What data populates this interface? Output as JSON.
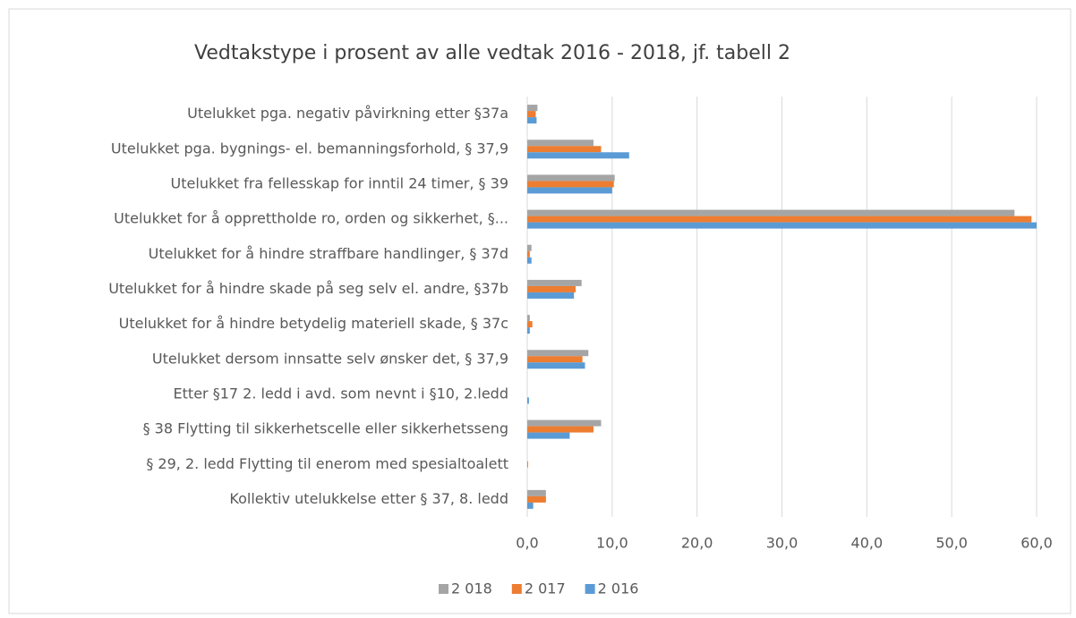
{
  "chart_data": {
    "type": "hbar",
    "title": "Vedtakstype i prosent av alle vedtak 2016 - 2018, jf. tabell 2",
    "categories": [
      "Utelukket pga. negativ påvirkning etter §37a",
      "Utelukket pga. bygnings- el. bemanningsforhold, § 37,9",
      "Utelukket fra fellesskap for inntil 24 timer, § 39",
      "Utelukket for å opprettholde ro, orden og sikkerhet, §...",
      "Utelukket for å hindre straffbare handlinger, § 37d",
      "Utelukket for å hindre skade på seg selv el. andre, §37b",
      "Utelukket for å hindre betydelig materiell skade, § 37c",
      "Utelukket dersom innsatte selv ønsker det, § 37,9",
      "Etter §17 2. ledd i avd. som nevnt i §10, 2.ledd",
      "§ 38 Flytting til sikkerhetscelle eller sikkerhetsseng",
      "§ 29, 2. ledd Flytting til enerom med spesialtoalett",
      "Kollektiv utelukkelse etter § 37, 8. ledd"
    ],
    "series": [
      {
        "name": "2 018",
        "color": "#a5a5a5",
        "values": [
          1.2,
          7.8,
          10.3,
          57.4,
          0.5,
          6.4,
          0.3,
          7.2,
          0,
          8.7,
          0,
          2.2
        ]
      },
      {
        "name": "2 017",
        "color": "#ed7d31",
        "values": [
          1.0,
          8.7,
          10.2,
          59.4,
          0.3,
          5.7,
          0.6,
          6.5,
          0,
          7.8,
          0.1,
          2.2
        ]
      },
      {
        "name": "2 016",
        "color": "#5b9bd5",
        "values": [
          1.1,
          12.0,
          10.0,
          60.0,
          0.5,
          5.5,
          0.3,
          6.8,
          0.2,
          5.0,
          0,
          0.7
        ]
      }
    ],
    "xlim": [
      0,
      60
    ],
    "xticks": [
      {
        "value": 0,
        "label": "0,0"
      },
      {
        "value": 10,
        "label": "10,0"
      },
      {
        "value": 20,
        "label": "20,0"
      },
      {
        "value": 30,
        "label": "30,0"
      },
      {
        "value": 40,
        "label": "40,0"
      },
      {
        "value": 50,
        "label": "50,0"
      },
      {
        "value": 60,
        "label": "60,0"
      }
    ],
    "grid": true,
    "legend": "bottom"
  }
}
